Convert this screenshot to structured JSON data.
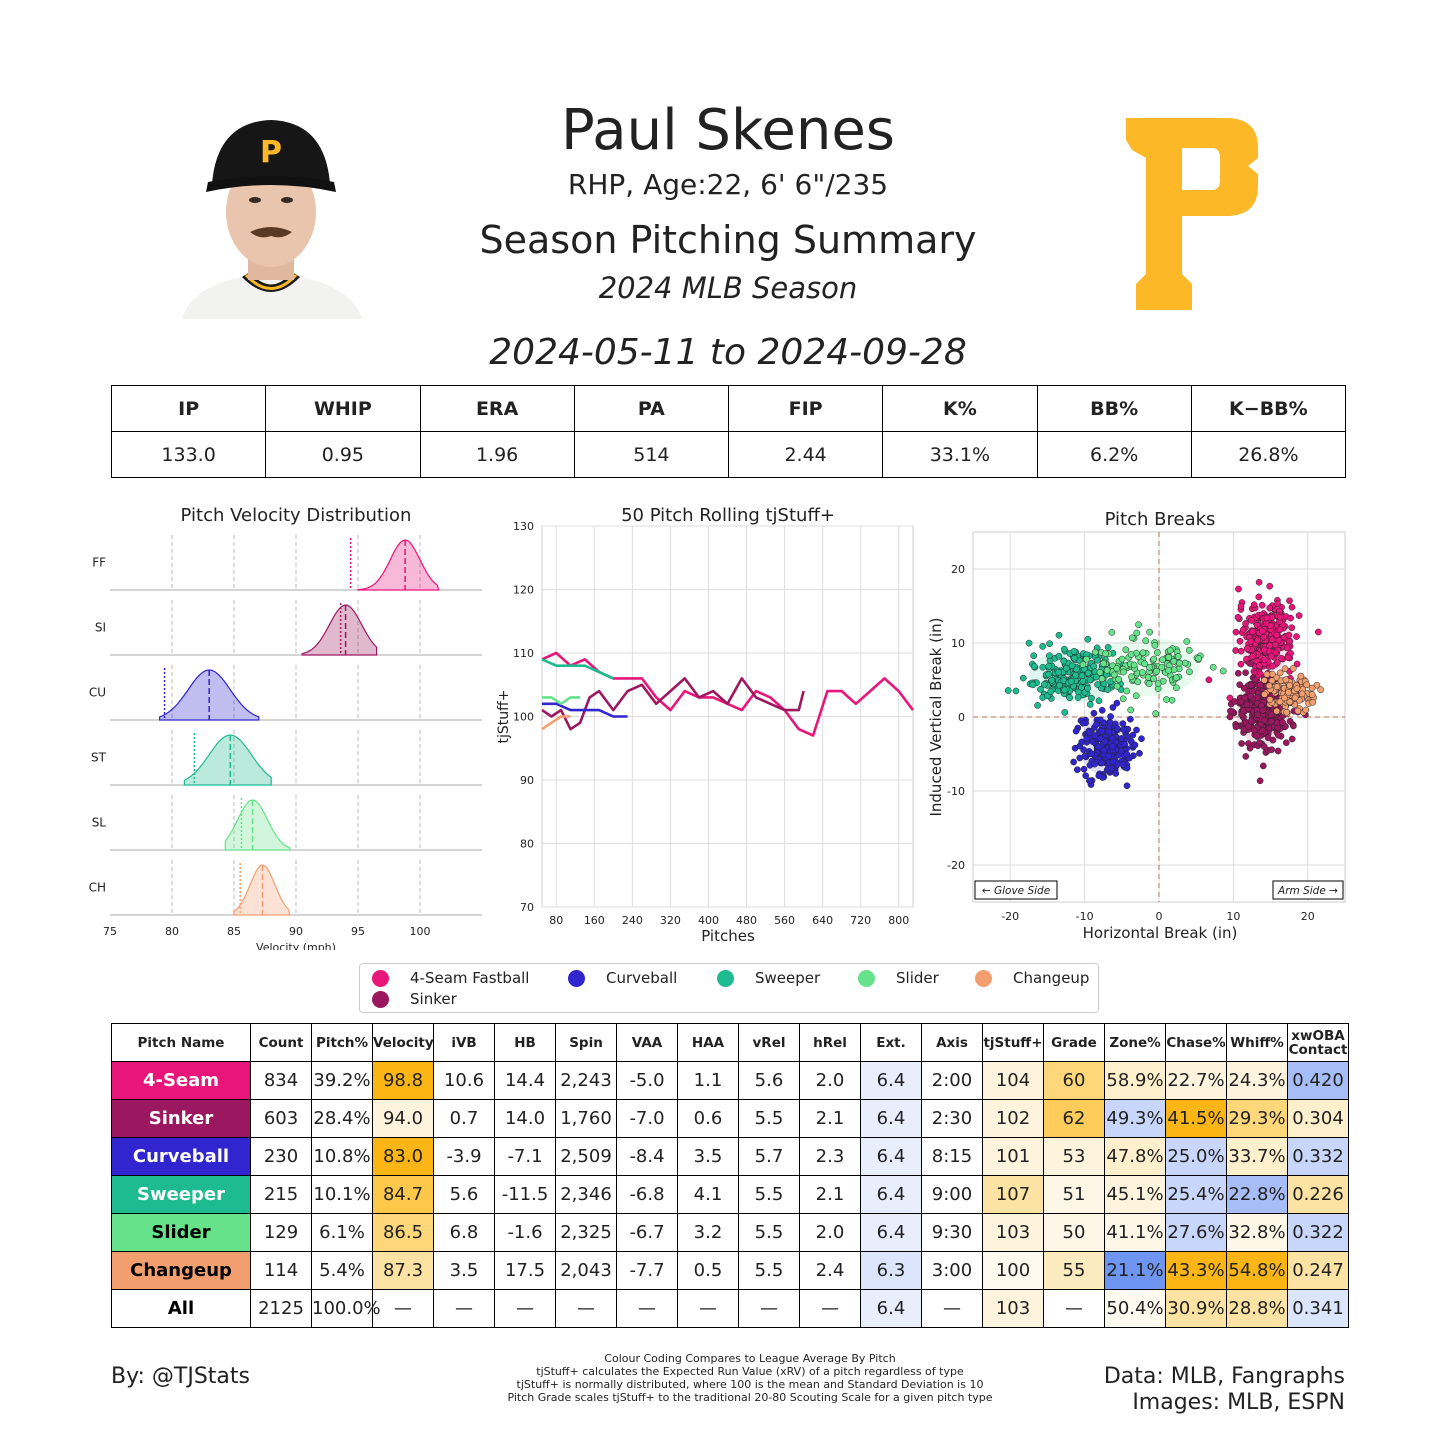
{
  "header": {
    "name": "Paul Skenes",
    "bio": "RHP, Age:22, 6' 6\"/235",
    "title": "Season Pitching Summary",
    "season": "2024 MLB Season",
    "date_range": "2024-05-11 to 2024-09-28",
    "logo_letter": "P"
  },
  "colors": {
    "ff": "#e8157a",
    "si": "#9b1860",
    "cu": "#3025ce",
    "st": "#1dbb8f",
    "sl": "#66e28a",
    "ch": "#f39e6f",
    "logo": "#fdb827"
  },
  "season_stats": {
    "headers": [
      "IP",
      "WHIP",
      "ERA",
      "PA",
      "FIP",
      "K%",
      "BB%",
      "K−BB%"
    ],
    "values": [
      "133.0",
      "0.95",
      "1.96",
      "514",
      "2.44",
      "33.1%",
      "6.2%",
      "26.8%"
    ]
  },
  "chart_data": [
    {
      "type": "area",
      "title": "Pitch Velocity Distribution",
      "xlabel": "Velocity (mph)",
      "ylabel": "",
      "xlim": [
        75,
        105
      ],
      "xticks": [
        75,
        80,
        85,
        90,
        95,
        100
      ],
      "series": [
        {
          "name": "FF",
          "mean": 98.8,
          "sd": 1.2,
          "min": 95,
          "max": 101.5,
          "league_avg": 94.4
        },
        {
          "name": "SI",
          "mean": 94.0,
          "sd": 1.3,
          "min": 90.5,
          "max": 96.5,
          "league_avg": 93.6
        },
        {
          "name": "CU",
          "mean": 83.0,
          "sd": 1.7,
          "min": 79,
          "max": 87,
          "league_avg": 79.4
        },
        {
          "name": "ST",
          "mean": 84.7,
          "sd": 1.7,
          "min": 81,
          "max": 88,
          "league_avg": 81.8
        },
        {
          "name": "SL",
          "mean": 86.5,
          "sd": 1.2,
          "min": 84.3,
          "max": 89.5,
          "league_avg": 85.6
        },
        {
          "name": "CH",
          "mean": 87.3,
          "sd": 1.0,
          "min": 85,
          "max": 89.5,
          "league_avg": 85.5
        }
      ]
    },
    {
      "type": "line",
      "title": "50 Pitch Rolling tjStuff+",
      "xlabel": "Pitches",
      "ylabel": "tjStuff+",
      "xlim": [
        50,
        830
      ],
      "ylim": [
        70,
        130
      ],
      "xticks": [
        80,
        160,
        240,
        320,
        400,
        480,
        560,
        640,
        720,
        800
      ],
      "yticks": [
        70,
        80,
        90,
        100,
        110,
        120,
        130
      ],
      "series": [
        {
          "name": "4-Seam Fastball",
          "x": [
            50,
            80,
            110,
            140,
            170,
            200,
            230,
            260,
            290,
            320,
            350,
            380,
            410,
            440,
            470,
            500,
            530,
            560,
            590,
            620,
            650,
            680,
            710,
            740,
            770,
            800,
            830
          ],
          "y": [
            109,
            110,
            108,
            109,
            107,
            106,
            106,
            106,
            103,
            101,
            104,
            103,
            103,
            102,
            101,
            104,
            103,
            101,
            98,
            97,
            104,
            104,
            102,
            104,
            106,
            104,
            101
          ]
        },
        {
          "name": "Sinker",
          "x": [
            50,
            70,
            90,
            110,
            130,
            150,
            170,
            200,
            230,
            260,
            290,
            320,
            350,
            380,
            410,
            440,
            470,
            500,
            530,
            560,
            590,
            600
          ],
          "y": [
            101,
            100,
            101,
            98,
            99,
            103,
            104,
            101,
            104,
            105,
            102,
            104,
            106,
            103,
            104,
            102,
            106,
            103,
            102,
            101,
            101,
            104
          ]
        },
        {
          "name": "Curveball",
          "x": [
            50,
            80,
            110,
            140,
            170,
            200,
            230
          ],
          "y": [
            102,
            102,
            101,
            101,
            101,
            100,
            100
          ]
        },
        {
          "name": "Sweeper",
          "x": [
            50,
            80,
            110,
            140,
            170,
            200
          ],
          "y": [
            109,
            108,
            108,
            108,
            107,
            106
          ]
        },
        {
          "name": "Slider",
          "x": [
            50,
            70,
            90,
            110,
            130
          ],
          "y": [
            103,
            103,
            102,
            103,
            103
          ]
        },
        {
          "name": "Changeup",
          "x": [
            50,
            70,
            90,
            110
          ],
          "y": [
            98,
            99,
            100,
            100
          ]
        }
      ]
    },
    {
      "type": "scatter",
      "title": "Pitch Breaks",
      "xlabel": "Horizontal Break (in)",
      "ylabel": "Induced Vertical Break (in)",
      "xlim": [
        -25,
        25
      ],
      "ylim": [
        -25,
        25
      ],
      "xticks": [
        -20,
        -10,
        0,
        10,
        20
      ],
      "yticks": [
        -20,
        -10,
        0,
        10,
        20
      ],
      "annotations": [
        "← Glove Side",
        "Arm Side →"
      ],
      "series": [
        {
          "name": "4-Seam Fastball",
          "center_x": 14.4,
          "center_y": 10.6,
          "spread_x": 1.8,
          "spread_y": 2.3,
          "n": 834
        },
        {
          "name": "Sinker",
          "center_x": 14.0,
          "center_y": 0.7,
          "spread_x": 1.8,
          "spread_y": 2.3,
          "n": 603
        },
        {
          "name": "Curveball",
          "center_x": -7.1,
          "center_y": -3.9,
          "spread_x": 1.8,
          "spread_y": 2.0,
          "n": 230
        },
        {
          "name": "Sweeper",
          "center_x": -11.5,
          "center_y": 5.6,
          "spread_x": 3.0,
          "spread_y": 1.8,
          "n": 215
        },
        {
          "name": "Slider",
          "center_x": -1.6,
          "center_y": 6.8,
          "spread_x": 3.5,
          "spread_y": 2.0,
          "n": 129
        },
        {
          "name": "Changeup",
          "center_x": 17.5,
          "center_y": 3.5,
          "spread_x": 1.6,
          "spread_y": 1.4,
          "n": 114
        }
      ]
    }
  ],
  "legend": [
    "4-Seam Fastball",
    "Curveball",
    "Sweeper",
    "Slider",
    "Changeup",
    "Sinker"
  ],
  "pitch_table": {
    "headers": [
      "Pitch Name",
      "Count",
      "Pitch%",
      "Velocity",
      "iVB",
      "HB",
      "Spin",
      "VAA",
      "HAA",
      "vRel",
      "hRel",
      "Ext.",
      "Axis",
      "tjStuff+",
      "Grade",
      "Zone%",
      "Chase%",
      "Whiff%",
      "xwOBA Contact"
    ],
    "rows": [
      {
        "name": "4-Seam",
        "cells": [
          "834",
          "39.2%",
          "98.8",
          "10.6",
          "14.4",
          "2,243",
          "-5.0",
          "1.1",
          "5.6",
          "2.0",
          "6.4",
          "2:00",
          "104",
          "60",
          "58.9%",
          "22.7%",
          "24.3%",
          "0.420"
        ]
      },
      {
        "name": "Sinker",
        "cells": [
          "603",
          "28.4%",
          "94.0",
          "0.7",
          "14.0",
          "1,760",
          "-7.0",
          "0.6",
          "5.5",
          "2.1",
          "6.4",
          "2:30",
          "102",
          "62",
          "49.3%",
          "41.5%",
          "29.3%",
          "0.304"
        ]
      },
      {
        "name": "Curveball",
        "cells": [
          "230",
          "10.8%",
          "83.0",
          "-3.9",
          "-7.1",
          "2,509",
          "-8.4",
          "3.5",
          "5.7",
          "2.3",
          "6.4",
          "8:15",
          "101",
          "53",
          "47.8%",
          "25.0%",
          "33.7%",
          "0.332"
        ]
      },
      {
        "name": "Sweeper",
        "cells": [
          "215",
          "10.1%",
          "84.7",
          "5.6",
          "-11.5",
          "2,346",
          "-6.8",
          "4.1",
          "5.5",
          "2.1",
          "6.4",
          "9:00",
          "107",
          "51",
          "45.1%",
          "25.4%",
          "22.8%",
          "0.226"
        ]
      },
      {
        "name": "Slider",
        "cells": [
          "129",
          "6.1%",
          "86.5",
          "6.8",
          "-1.6",
          "2,325",
          "-6.7",
          "3.2",
          "5.5",
          "2.0",
          "6.4",
          "9:30",
          "103",
          "50",
          "41.1%",
          "27.6%",
          "32.8%",
          "0.322"
        ]
      },
      {
        "name": "Changeup",
        "cells": [
          "114",
          "5.4%",
          "87.3",
          "3.5",
          "17.5",
          "2,043",
          "-7.7",
          "0.5",
          "5.5",
          "2.4",
          "6.3",
          "3:00",
          "100",
          "55",
          "21.1%",
          "43.3%",
          "54.8%",
          "0.247"
        ]
      },
      {
        "name": "All",
        "cells": [
          "2125",
          "100.0%",
          "—",
          "—",
          "—",
          "—",
          "—",
          "—",
          "—",
          "—",
          "6.4",
          "—",
          "103",
          "—",
          "50.4%",
          "30.9%",
          "28.8%",
          "0.341"
        ]
      }
    ],
    "name_colors": {
      "4-Seam": {
        "bg": "#e8157a",
        "fg": "#ffffff"
      },
      "Sinker": {
        "bg": "#9b1860",
        "fg": "#ffffff"
      },
      "Curveball": {
        "bg": "#3025ce",
        "fg": "#ffffff"
      },
      "Sweeper": {
        "bg": "#1dbb8f",
        "fg": "#ffffff"
      },
      "Slider": {
        "bg": "#66e28a",
        "fg": "#000000"
      },
      "Changeup": {
        "bg": "#f39e6f",
        "fg": "#000000"
      },
      "All": {
        "bg": "#ffffff",
        "fg": "#000000"
      }
    },
    "cell_colors": [
      [
        "",
        "",
        "#fbb515",
        "",
        "",
        "",
        "",
        "",
        "",
        "",
        "#e8eefc",
        "",
        "#fef4de",
        "#fdd77a",
        "#fef0cc",
        "#fef4de",
        "#fef4de",
        "#a6bdf8"
      ],
      [
        "",
        "",
        "#fef4de",
        "",
        "",
        "",
        "",
        "",
        "",
        "",
        "#e8eefc",
        "",
        "#fef4de",
        "#fdcc5a",
        "#c9d6fb",
        "#fbb515",
        "#fdd77a",
        "#fef0cc"
      ],
      [
        "",
        "",
        "#fbb515",
        "",
        "",
        "",
        "",
        "",
        "",
        "",
        "#e8eefc",
        "",
        "#fef4de",
        "#fef4de",
        "#fef0cc",
        "#c9d6fb",
        "#fef0cc",
        "#c9d6fb"
      ],
      [
        "",
        "",
        "#fdc84a",
        "",
        "",
        "",
        "",
        "",
        "",
        "",
        "#e8eefc",
        "",
        "#fde3a3",
        "#fef7e8",
        "#fef4de",
        "#c9d6fb",
        "#a6bdf8",
        "#fde3a3"
      ],
      [
        "",
        "",
        "#fdd77a",
        "",
        "",
        "",
        "",
        "",
        "",
        "",
        "#e8eefc",
        "",
        "#fef4de",
        "#fef7e8",
        "#fef7e8",
        "#c9d6fb",
        "#fef7e8",
        "#c9d6fb"
      ],
      [
        "",
        "",
        "#fde3a3",
        "",
        "",
        "",
        "",
        "",
        "",
        "",
        "#dbe5fb",
        "",
        "#fefaf0",
        "#fdebc0",
        "#6f95f2",
        "#fbb515",
        "#fbb515",
        "#fde3a3"
      ],
      [
        "",
        "",
        "",
        "",
        "",
        "",
        "",
        "",
        "",
        "",
        "#e8eefc",
        "",
        "#fef4de",
        "",
        "#fefaf0",
        "#fde3a3",
        "#fde3a3",
        "#dbe5fb"
      ]
    ]
  },
  "footer": {
    "left": "By: @TJStats",
    "right1": "Data: MLB, Fangraphs",
    "right2": "Images: MLB, ESPN",
    "notes": [
      "Colour Coding Compares to League Average By Pitch",
      "tjStuff+ calculates the Expected Run Value (xRV) of a pitch regardless of type",
      "tjStuff+ is normally distributed, where 100 is the mean and Standard Deviation is 10",
      "Pitch Grade scales tjStuff+ to the traditional 20-80 Scouting Scale for a given pitch type"
    ]
  }
}
